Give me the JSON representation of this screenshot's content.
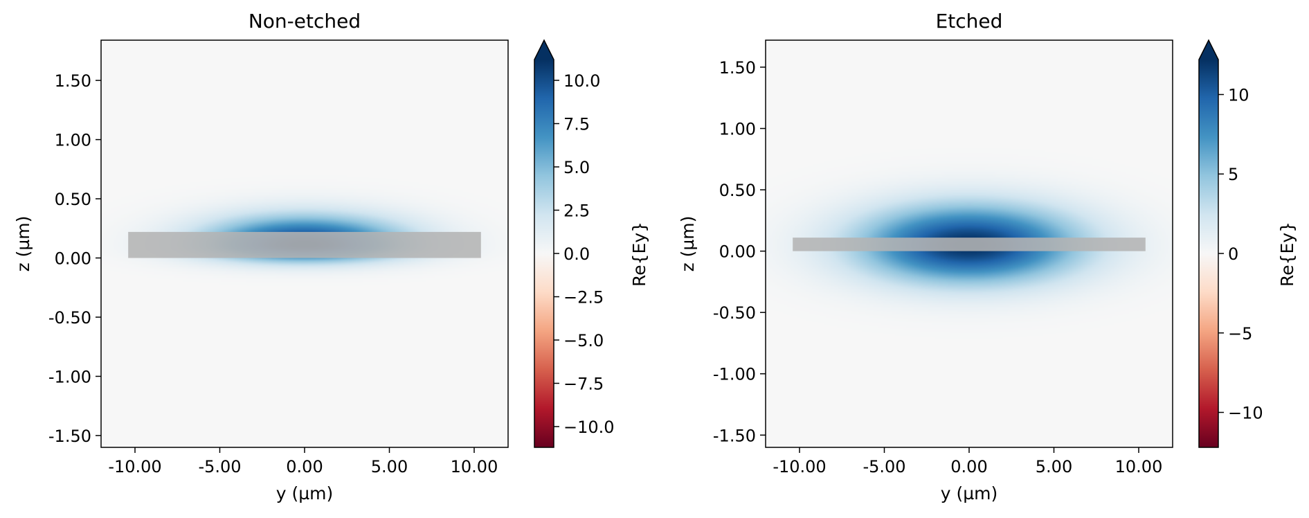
{
  "chart_data": [
    {
      "type": "heatmap",
      "title": "Non-etched",
      "xlabel": "y (µm)",
      "ylabel": "z (µm)",
      "xlim": [
        -12.0,
        12.0
      ],
      "ylim": [
        -1.6,
        1.84
      ],
      "xticks": [
        -10,
        -5,
        0,
        5,
        10
      ],
      "xtick_labels": [
        "-10.00",
        "-5.00",
        "0.00",
        "5.00",
        "10.00"
      ],
      "yticks": [
        -1.5,
        -1.0,
        -0.5,
        0.0,
        0.5,
        1.0,
        1.5
      ],
      "ytick_labels": [
        "-1.50",
        "-1.00",
        "-0.50",
        "0.00",
        "0.50",
        "1.00",
        "1.50"
      ],
      "field_max": 11.2,
      "mode": {
        "center_y": 0.0,
        "center_z": 0.11,
        "sigma_y": 4.2,
        "sigma_z_above": 0.17,
        "sigma_z_below": 0.1
      },
      "waveguide": {
        "y_range": [
          -10.4,
          10.4
        ],
        "z_range": [
          0.0,
          0.22
        ]
      },
      "colorbar": {
        "label": "Re{Ey}",
        "range": [
          -11.2,
          11.2
        ],
        "ticks": [
          10.0,
          7.5,
          5.0,
          2.5,
          0.0,
          -2.5,
          -5.0,
          -7.5,
          -10.0
        ],
        "tick_labels": [
          "10.0",
          "7.5",
          "5.0",
          "2.5",
          "0.0",
          "−2.5",
          "−5.0",
          "−7.5",
          "−10.0"
        ],
        "extend": "max"
      }
    },
    {
      "type": "heatmap",
      "title": "Etched",
      "xlabel": "y (µm)",
      "ylabel": "z (µm)",
      "xlim": [
        -12.0,
        12.0
      ],
      "ylim": [
        -1.6,
        1.72
      ],
      "xticks": [
        -10,
        -5,
        0,
        5,
        10
      ],
      "xtick_labels": [
        "-10.00",
        "-5.00",
        "0.00",
        "5.00",
        "10.00"
      ],
      "yticks": [
        -1.5,
        -1.0,
        -0.5,
        0.0,
        0.5,
        1.0,
        1.5
      ],
      "ytick_labels": [
        "-1.50",
        "-1.00",
        "-0.50",
        "0.00",
        "0.50",
        "1.00",
        "1.50"
      ],
      "field_max": 12.2,
      "mode": {
        "center_y": 0.0,
        "center_z": 0.05,
        "sigma_y": 4.6,
        "sigma_z_above": 0.23,
        "sigma_z_below": 0.22
      },
      "waveguide": {
        "y_range": [
          -10.4,
          10.4
        ],
        "z_range": [
          0.0,
          0.11
        ]
      },
      "colorbar": {
        "label": "Re{Ey}",
        "range": [
          -12.2,
          12.2
        ],
        "ticks": [
          10,
          5,
          0,
          -5,
          -10
        ],
        "tick_labels": [
          "10",
          "5",
          "0",
          "−5",
          "−10"
        ],
        "extend": "max"
      }
    }
  ],
  "colormap": [
    "#67001f",
    "#b2182b",
    "#d6604d",
    "#f4a582",
    "#fddbc7",
    "#f7f7f7",
    "#d1e5f0",
    "#92c5de",
    "#4393c3",
    "#2166ac",
    "#053061"
  ],
  "background_color": "#f5f7f7",
  "waveguide_color": "#b4b4b4"
}
